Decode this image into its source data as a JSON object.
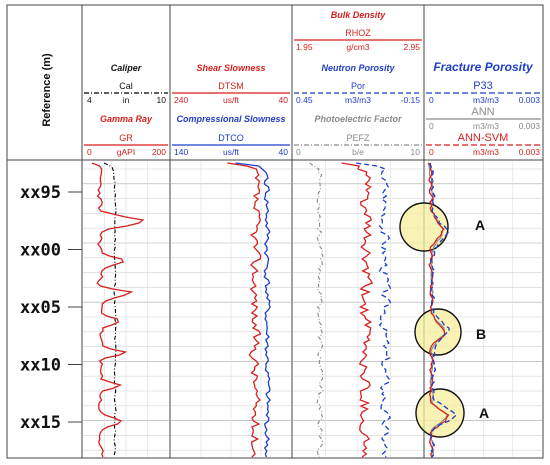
{
  "chart_data": {
    "type": "line",
    "depth_axis": {
      "label": "Reference (m)",
      "ticks": [
        "xx95",
        "xx00",
        "xx05",
        "xx10",
        "xx15"
      ]
    },
    "tracks": [
      {
        "title": "Caliper",
        "curves": [
          {
            "name": "Cal",
            "unit": "in",
            "min": "4",
            "max": "10",
            "color": "#000000"
          },
          {
            "name": "GR",
            "unit": "gAPI",
            "min": "0",
            "max": "200",
            "color": "#d81f1f",
            "title": "Gamma Ray"
          }
        ]
      },
      {
        "title": "Shear Slowness",
        "curves": [
          {
            "name": "DTSM",
            "unit": "us/ft",
            "min": "240",
            "max": "40",
            "color": "#d81f1f"
          },
          {
            "name": "DTCO",
            "unit": "us/ft",
            "min": "140",
            "max": "40",
            "color": "#1f3ec9",
            "title": "Compressional Slowness"
          }
        ]
      },
      {
        "title": "Bulk Density",
        "curves": [
          {
            "name": "RHOZ",
            "unit": "g/cm3",
            "min": "1.95",
            "max": "2.95",
            "color": "#d81f1f"
          },
          {
            "name": "Por",
            "unit": "m3/m3",
            "min": "0.45",
            "max": "-0.15",
            "color": "#1f3ec9",
            "title": "Neutron Porosity"
          },
          {
            "name": "PEFZ",
            "unit": "b/e",
            "min": "0",
            "max": "10",
            "color": "#8a8a8a",
            "title": "Photoelectric Factor"
          }
        ]
      },
      {
        "title": "Fracture Porosity",
        "curves": [
          {
            "name": "P33",
            "unit": "m3/m3",
            "min": "0",
            "max": "0.003",
            "color": "#1f3ec9"
          },
          {
            "name": "ANN",
            "unit": "m3/m3",
            "min": "0",
            "max": "0.003",
            "color": "#8a8a8a"
          },
          {
            "name": "ANN-SVM",
            "unit": "m3/m3",
            "min": "0",
            "max": "0.003",
            "color": "#d81f1f"
          }
        ]
      }
    ],
    "annotations": [
      "A",
      "B",
      "A"
    ]
  }
}
